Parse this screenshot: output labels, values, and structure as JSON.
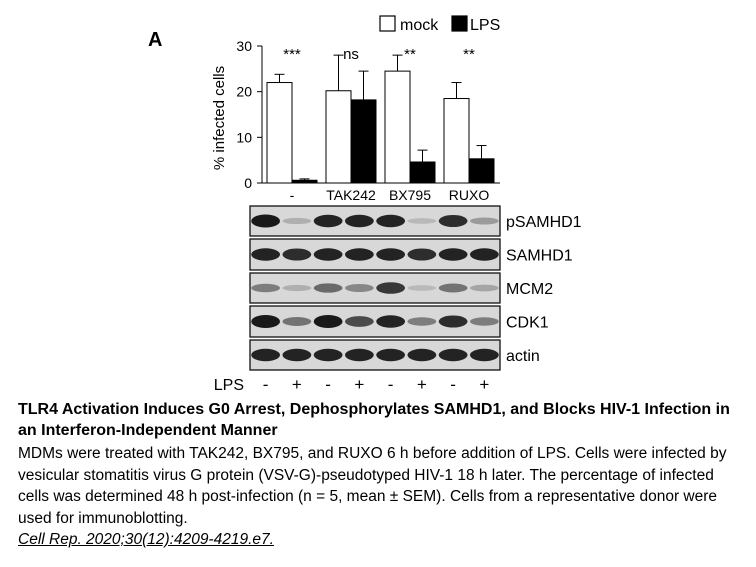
{
  "panel_label": "A",
  "chart_data": {
    "type": "bar",
    "ylabel": "% infected cells",
    "xlabel": "",
    "ylim": [
      0,
      30
    ],
    "yticks": [
      0,
      10,
      20,
      30
    ],
    "categories": [
      "-",
      "TAK242",
      "BX795",
      "RUXO"
    ],
    "series": [
      {
        "name": "mock",
        "color": "#ffffff",
        "values": [
          22.0,
          20.2,
          24.5,
          18.5
        ],
        "errors": [
          1.8,
          7.8,
          3.5,
          3.5
        ]
      },
      {
        "name": "LPS",
        "color": "#000000",
        "values": [
          0.6,
          18.2,
          4.6,
          5.3
        ],
        "errors": [
          0.3,
          6.3,
          2.6,
          2.9
        ]
      }
    ],
    "significance": [
      "***",
      "ns",
      "**",
      "**"
    ],
    "legend_position": "top-right",
    "grid": false
  },
  "blot": {
    "labels": [
      "pSAMHD1",
      "SAMHD1",
      "MCM2",
      "CDK1",
      "actin"
    ],
    "lps_label": "LPS",
    "lps_signs": [
      "-",
      "+",
      "-",
      "+",
      "-",
      "+",
      "-",
      "+"
    ],
    "intensities": [
      [
        0.95,
        0.2,
        0.9,
        0.9,
        0.9,
        0.15,
        0.85,
        0.3
      ],
      [
        0.9,
        0.85,
        0.9,
        0.9,
        0.9,
        0.85,
        0.9,
        0.9
      ],
      [
        0.45,
        0.2,
        0.55,
        0.4,
        0.8,
        0.15,
        0.5,
        0.25
      ],
      [
        0.95,
        0.5,
        0.95,
        0.7,
        0.9,
        0.45,
        0.85,
        0.45
      ],
      [
        0.9,
        0.9,
        0.9,
        0.9,
        0.9,
        0.9,
        0.9,
        0.9
      ]
    ]
  },
  "caption": {
    "title": "TLR4 Activation Induces G0 Arrest, Dephosphorylates SAMHD1, and Blocks HIV-1 Infection in an Interferon-Independent Manner",
    "body": "MDMs were treated with TAK242, BX795, and RUXO 6 h before addition of LPS. Cells were infected by vesicular stomatitis virus G protein (VSV-G)-pseudotyped HIV-1 18 h later. The percentage of infected cells was determined 48 h post-infection (n = 5, mean ± SEM). Cells from a representative donor were used for immunoblotting.",
    "reference": "Cell Rep. 2020;30(12):4209-4219.e7."
  }
}
